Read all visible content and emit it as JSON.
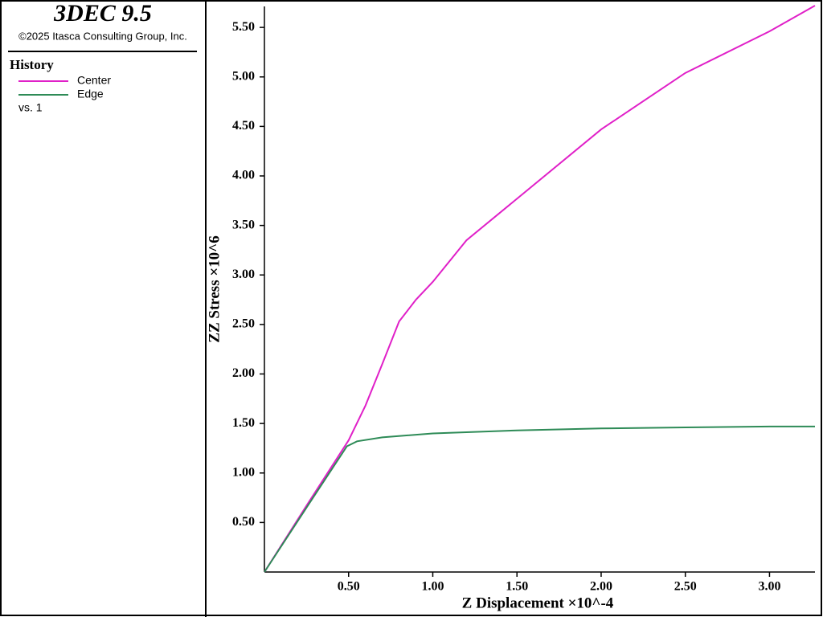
{
  "chart_data": {
    "type": "line",
    "title": "3DEC 9.5",
    "subtitle": "©2025 Itasca Consulting Group, Inc.",
    "legend_title": "History",
    "legend_note": "vs. 1",
    "x_label": "Z Displacement ×10^-4",
    "y_label": "ZZ Stress ×10^6",
    "xlim": [
      0,
      3.27
    ],
    "ylim": [
      0,
      5.72
    ],
    "xticks": [
      {
        "value": 0.5,
        "label": "0.50"
      },
      {
        "value": 1.0,
        "label": "1.00"
      },
      {
        "value": 1.5,
        "label": "1.50"
      },
      {
        "value": 2.0,
        "label": "2.00"
      },
      {
        "value": 2.5,
        "label": "2.50"
      },
      {
        "value": 3.0,
        "label": "3.00"
      }
    ],
    "yticks": [
      {
        "value": 0.5,
        "label": "0.50"
      },
      {
        "value": 1.0,
        "label": "1.00"
      },
      {
        "value": 1.5,
        "label": "1.50"
      },
      {
        "value": 2.0,
        "label": "2.00"
      },
      {
        "value": 2.5,
        "label": "2.50"
      },
      {
        "value": 3.0,
        "label": "3.00"
      },
      {
        "value": 3.5,
        "label": "3.50"
      },
      {
        "value": 4.0,
        "label": "4.00"
      },
      {
        "value": 4.5,
        "label": "4.50"
      },
      {
        "value": 5.0,
        "label": "5.00"
      },
      {
        "value": 5.5,
        "label": "5.50"
      }
    ],
    "series": [
      {
        "name": "Center",
        "color": "#e020c8",
        "x": [
          0,
          0.25,
          0.5,
          0.6,
          0.7,
          0.8,
          0.9,
          1.0,
          1.2,
          1.5,
          2.0,
          2.5,
          3.0,
          3.27
        ],
        "values": [
          0,
          0.67,
          1.33,
          1.68,
          2.1,
          2.53,
          2.75,
          2.93,
          3.35,
          3.77,
          4.47,
          5.04,
          5.46,
          5.72
        ]
      },
      {
        "name": "Edge",
        "color": "#2e8b57",
        "x": [
          0,
          0.25,
          0.49,
          0.55,
          0.7,
          1.0,
          1.5,
          2.0,
          2.5,
          3.0,
          3.27
        ],
        "values": [
          0,
          0.65,
          1.27,
          1.32,
          1.36,
          1.4,
          1.43,
          1.45,
          1.46,
          1.47,
          1.47
        ]
      }
    ]
  }
}
